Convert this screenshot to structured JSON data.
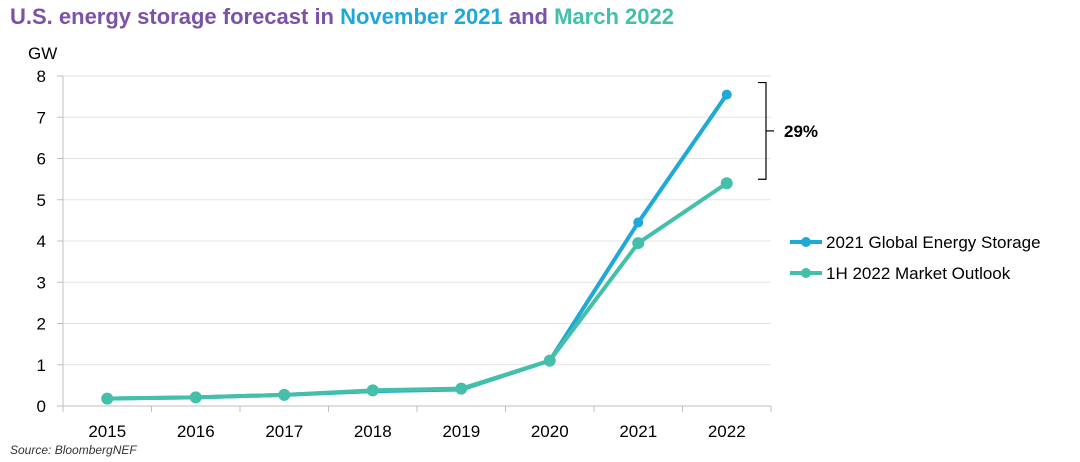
{
  "title": {
    "part1": "U.S. energy storage forecast in ",
    "part2": "November 2021",
    "part3": " and ",
    "part4": "March 2022",
    "color_main": "#7a52a8",
    "color_nov": "#1fa9d8",
    "color_mar": "#43bfaa"
  },
  "source": "Source: BloombergNEF",
  "chart_data": {
    "type": "line",
    "title": "U.S. energy storage forecast in November 2021 and March 2022",
    "ylabel": "GW",
    "xlabel": "",
    "ylim": [
      0,
      8
    ],
    "yticks": [
      0,
      1,
      2,
      3,
      4,
      5,
      6,
      7,
      8
    ],
    "categories": [
      "2015",
      "2016",
      "2017",
      "2018",
      "2019",
      "2020",
      "2021",
      "2022"
    ],
    "grid": true,
    "legend_position": "right",
    "series": [
      {
        "name": "2021 Global Energy Storage",
        "color": "#1fa9d8",
        "values": [
          0.18,
          0.21,
          0.27,
          0.36,
          0.4,
          1.1,
          4.45,
          7.55
        ]
      },
      {
        "name": "1H 2022 Market Outlook",
        "color": "#43bfaa",
        "values": [
          0.18,
          0.21,
          0.27,
          0.38,
          0.42,
          1.1,
          3.95,
          5.4
        ]
      }
    ],
    "annotation": {
      "label": "29%",
      "from_value": 7.55,
      "to_value": 5.4
    }
  }
}
